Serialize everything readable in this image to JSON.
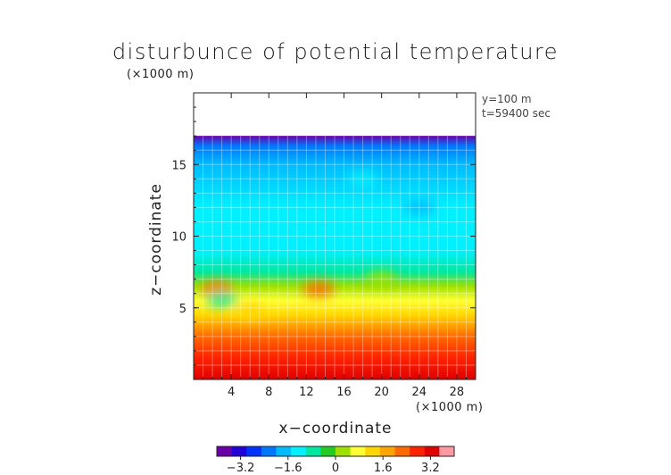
{
  "chart_data": {
    "type": "heatmap",
    "title": "disturbunce of potential temperature",
    "xlabel": "x−coordinate",
    "ylabel": "z−coordinate",
    "x_unit": "(×1000 m)",
    "y_unit": "(×1000 m)",
    "annotations": [
      "y=100 m",
      "t=59400 sec"
    ],
    "xlim": [
      0,
      30
    ],
    "ylim": [
      0,
      20
    ],
    "x_ticks": [
      4,
      8,
      12,
      16,
      20,
      24,
      28
    ],
    "y_ticks": [
      5,
      10,
      15
    ],
    "x_tick_labels": [
      "4",
      "8",
      "12",
      "16",
      "20",
      "24",
      "28"
    ],
    "y_tick_labels": [
      "5",
      "10",
      "15"
    ],
    "grid": true,
    "colorbar": {
      "range": [
        -4,
        4
      ],
      "ticks": [
        -3.2,
        -1.6,
        0,
        1.6,
        3.2
      ],
      "tick_labels": [
        "−3.2",
        "−1.6",
        "0",
        "1.6",
        "3.2"
      ],
      "colors": [
        "#6a00a8",
        "#2200d8",
        "#0033ff",
        "#0077ff",
        "#00bbff",
        "#00f0ff",
        "#00e8a0",
        "#22cc22",
        "#9ee000",
        "#ffff33",
        "#ffd700",
        "#ffa500",
        "#ff6a00",
        "#ff2200",
        "#e00000",
        "#ff9aa5"
      ]
    },
    "data_top_z": 17.0,
    "z_profile": [
      {
        "z": 0.0,
        "value": 3.0
      },
      {
        "z": 1.5,
        "value": 2.6
      },
      {
        "z": 3.0,
        "value": 2.1
      },
      {
        "z": 4.5,
        "value": 1.3
      },
      {
        "z": 5.5,
        "value": 0.9
      },
      {
        "z": 6.5,
        "value": 0.2
      },
      {
        "z": 7.5,
        "value": -0.6
      },
      {
        "z": 9.0,
        "value": -1.2
      },
      {
        "z": 12.0,
        "value": -1.5
      },
      {
        "z": 15.0,
        "value": -1.8
      },
      {
        "z": 16.3,
        "value": -2.5
      },
      {
        "z": 17.0,
        "value": -3.6
      }
    ],
    "features": [
      {
        "x": 2.5,
        "z": 6.3,
        "value": 2.4
      },
      {
        "x": 13.3,
        "z": 6.3,
        "value": 2.0
      },
      {
        "x": 6.0,
        "z": 4.8,
        "value": 1.4
      },
      {
        "x": 20.0,
        "z": 7.0,
        "value": 0.3
      },
      {
        "x": 3.0,
        "z": 5.6,
        "value": -0.6
      },
      {
        "x": 24.0,
        "z": 12.0,
        "value": -1.8
      },
      {
        "x": 9.0,
        "z": 10.0,
        "value": -1.2
      },
      {
        "x": 18.0,
        "z": 14.0,
        "value": -1.3
      }
    ]
  }
}
